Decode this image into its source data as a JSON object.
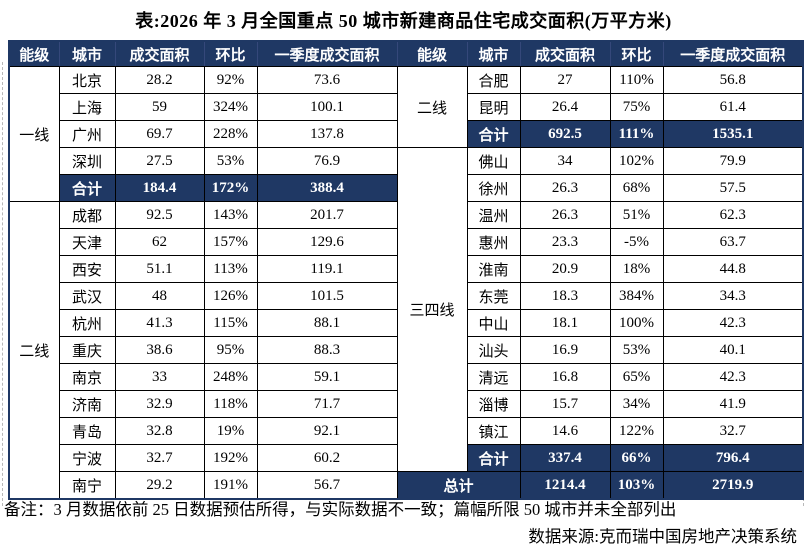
{
  "title": "表:2026 年 3 月全国重点 50 城市新建商品住宅成交面积(万平方米)",
  "unit": "万平方米",
  "colors": {
    "header_bg": "#1F3864",
    "highlight_row_bg": "#1F3864",
    "header_text": "#FFFFFF",
    "body_text": "#000000",
    "grid_line": "#000000",
    "page_bg": "#FFFFFF"
  },
  "table": {
    "headers": [
      "能级",
      "城市",
      "成交面积",
      "环比",
      "一季度成交面积",
      "能级",
      "城市",
      "成交面积",
      "环比",
      "一季度成交面积"
    ],
    "rows": [
      [
        {
          "t": "一线",
          "k": "tier",
          "rs": 5
        },
        {
          "t": "北京",
          "k": "city"
        },
        {
          "t": "28.2",
          "k": "num"
        },
        {
          "t": "92%",
          "k": "num"
        },
        {
          "t": "73.6",
          "k": "num"
        },
        {
          "t": "二线",
          "k": "tier",
          "rs": 3
        },
        {
          "t": "合肥",
          "k": "city"
        },
        {
          "t": "27",
          "k": "num"
        },
        {
          "t": "110%",
          "k": "num"
        },
        {
          "t": "56.8",
          "k": "num"
        }
      ],
      [
        {
          "t": "上海",
          "k": "city"
        },
        {
          "t": "59",
          "k": "num"
        },
        {
          "t": "324%",
          "k": "num"
        },
        {
          "t": "100.1",
          "k": "num"
        },
        {
          "t": "昆明",
          "k": "city"
        },
        {
          "t": "26.4",
          "k": "num"
        },
        {
          "t": "75%",
          "k": "num"
        },
        {
          "t": "61.4",
          "k": "num"
        }
      ],
      [
        {
          "t": "广州",
          "k": "city"
        },
        {
          "t": "69.7",
          "k": "num"
        },
        {
          "t": "228%",
          "k": "num"
        },
        {
          "t": "137.8",
          "k": "num"
        },
        {
          "t": "合计",
          "k": "hl-label"
        },
        {
          "t": "692.5",
          "k": "hl-num"
        },
        {
          "t": "111%",
          "k": "hl-num"
        },
        {
          "t": "1535.1",
          "k": "hl-num"
        }
      ],
      [
        {
          "t": "深圳",
          "k": "city"
        },
        {
          "t": "27.5",
          "k": "num"
        },
        {
          "t": "53%",
          "k": "num"
        },
        {
          "t": "76.9",
          "k": "num"
        },
        {
          "t": "三四线",
          "k": "tier",
          "rs": 12
        },
        {
          "t": "佛山",
          "k": "city"
        },
        {
          "t": "34",
          "k": "num"
        },
        {
          "t": "102%",
          "k": "num"
        },
        {
          "t": "79.9",
          "k": "num"
        }
      ],
      [
        {
          "t": "合计",
          "k": "hl-label"
        },
        {
          "t": "184.4",
          "k": "hl-num"
        },
        {
          "t": "172%",
          "k": "hl-num"
        },
        {
          "t": "388.4",
          "k": "hl-num"
        },
        {
          "t": "徐州",
          "k": "city"
        },
        {
          "t": "26.3",
          "k": "num"
        },
        {
          "t": "68%",
          "k": "num"
        },
        {
          "t": "57.5",
          "k": "num"
        }
      ],
      [
        {
          "t": "二线",
          "k": "tier",
          "rs": 11
        },
        {
          "t": "成都",
          "k": "city"
        },
        {
          "t": "92.5",
          "k": "num"
        },
        {
          "t": "143%",
          "k": "num"
        },
        {
          "t": "201.7",
          "k": "num"
        },
        {
          "t": "温州",
          "k": "city"
        },
        {
          "t": "26.3",
          "k": "num"
        },
        {
          "t": "51%",
          "k": "num"
        },
        {
          "t": "62.3",
          "k": "num"
        }
      ],
      [
        {
          "t": "天津",
          "k": "city"
        },
        {
          "t": "62",
          "k": "num"
        },
        {
          "t": "157%",
          "k": "num"
        },
        {
          "t": "129.6",
          "k": "num"
        },
        {
          "t": "惠州",
          "k": "city"
        },
        {
          "t": "23.3",
          "k": "num"
        },
        {
          "t": "-5%",
          "k": "num"
        },
        {
          "t": "63.7",
          "k": "num"
        }
      ],
      [
        {
          "t": "西安",
          "k": "city"
        },
        {
          "t": "51.1",
          "k": "num"
        },
        {
          "t": "113%",
          "k": "num"
        },
        {
          "t": "119.1",
          "k": "num"
        },
        {
          "t": "淮南",
          "k": "city"
        },
        {
          "t": "20.9",
          "k": "num"
        },
        {
          "t": "18%",
          "k": "num"
        },
        {
          "t": "44.8",
          "k": "num"
        }
      ],
      [
        {
          "t": "武汉",
          "k": "city"
        },
        {
          "t": "48",
          "k": "num"
        },
        {
          "t": "126%",
          "k": "num"
        },
        {
          "t": "101.5",
          "k": "num"
        },
        {
          "t": "东莞",
          "k": "city"
        },
        {
          "t": "18.3",
          "k": "num"
        },
        {
          "t": "384%",
          "k": "num"
        },
        {
          "t": "34.3",
          "k": "num"
        }
      ],
      [
        {
          "t": "杭州",
          "k": "city"
        },
        {
          "t": "41.3",
          "k": "num"
        },
        {
          "t": "115%",
          "k": "num"
        },
        {
          "t": "88.1",
          "k": "num"
        },
        {
          "t": "中山",
          "k": "city"
        },
        {
          "t": "18.1",
          "k": "num"
        },
        {
          "t": "100%",
          "k": "num"
        },
        {
          "t": "42.3",
          "k": "num"
        }
      ],
      [
        {
          "t": "重庆",
          "k": "city"
        },
        {
          "t": "38.6",
          "k": "num"
        },
        {
          "t": "95%",
          "k": "num"
        },
        {
          "t": "88.3",
          "k": "num"
        },
        {
          "t": "汕头",
          "k": "city"
        },
        {
          "t": "16.9",
          "k": "num"
        },
        {
          "t": "53%",
          "k": "num"
        },
        {
          "t": "40.1",
          "k": "num"
        }
      ],
      [
        {
          "t": "南京",
          "k": "city"
        },
        {
          "t": "33",
          "k": "num"
        },
        {
          "t": "248%",
          "k": "num"
        },
        {
          "t": "59.1",
          "k": "num"
        },
        {
          "t": "清远",
          "k": "city"
        },
        {
          "t": "16.8",
          "k": "num"
        },
        {
          "t": "65%",
          "k": "num"
        },
        {
          "t": "42.3",
          "k": "num"
        }
      ],
      [
        {
          "t": "济南",
          "k": "city"
        },
        {
          "t": "32.9",
          "k": "num"
        },
        {
          "t": "118%",
          "k": "num"
        },
        {
          "t": "71.7",
          "k": "num"
        },
        {
          "t": "淄博",
          "k": "city"
        },
        {
          "t": "15.7",
          "k": "num"
        },
        {
          "t": "34%",
          "k": "num"
        },
        {
          "t": "41.9",
          "k": "num"
        }
      ],
      [
        {
          "t": "青岛",
          "k": "city"
        },
        {
          "t": "32.8",
          "k": "num"
        },
        {
          "t": "19%",
          "k": "num"
        },
        {
          "t": "92.1",
          "k": "num"
        },
        {
          "t": "镇江",
          "k": "city"
        },
        {
          "t": "14.6",
          "k": "num"
        },
        {
          "t": "122%",
          "k": "num"
        },
        {
          "t": "32.7",
          "k": "num"
        }
      ],
      [
        {
          "t": "宁波",
          "k": "city"
        },
        {
          "t": "32.7",
          "k": "num"
        },
        {
          "t": "192%",
          "k": "num"
        },
        {
          "t": "60.2",
          "k": "num"
        },
        {
          "t": "合计",
          "k": "hl-label"
        },
        {
          "t": "337.4",
          "k": "hl-num"
        },
        {
          "t": "66%",
          "k": "hl-num"
        },
        {
          "t": "796.4",
          "k": "hl-num"
        }
      ],
      [
        {
          "t": "南宁",
          "k": "city"
        },
        {
          "t": "29.2",
          "k": "num"
        },
        {
          "t": "191%",
          "k": "num"
        },
        {
          "t": "56.7",
          "k": "num"
        },
        {
          "t": "总计",
          "k": "hl-label",
          "cs": 2
        },
        {
          "t": "1214.4",
          "k": "hl-num"
        },
        {
          "t": "103%",
          "k": "hl-num"
        },
        {
          "t": "2719.9",
          "k": "hl-num"
        }
      ]
    ]
  },
  "notes": {
    "remark": "备注：3 月数据依前 25 日数据预估所得，与实际数据不一致；篇幅所限 50 城市并未全部列出",
    "source": "数据来源:克而瑞中国房地产决策系统"
  }
}
